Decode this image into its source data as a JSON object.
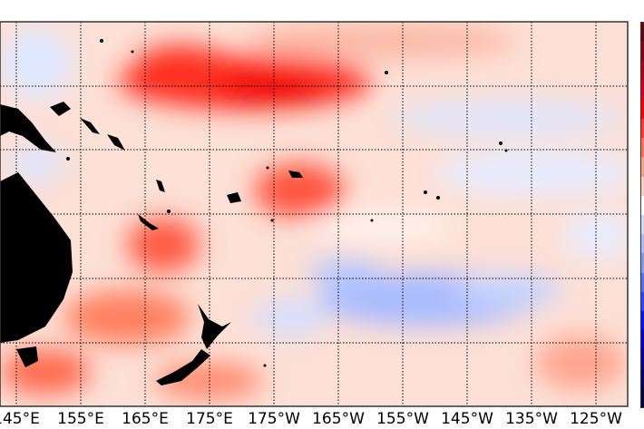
{
  "map": {
    "type": "sea-surface-temperature-anomaly",
    "longitude_labels": [
      "145°E",
      "155°E",
      "165°E",
      "175°E",
      "175°W",
      "165°W",
      "155°W",
      "145°W",
      "135°W",
      "125°W"
    ],
    "colorbar_colors": [
      "#67000d",
      "#8b0010",
      "#b00015",
      "#d7001c",
      "#ff0000",
      "#ff3a2a",
      "#ff7050",
      "#ffa080",
      "#ffd0c0",
      "#ffffff",
      "#d0dcff",
      "#a8bdff",
      "#7f9aff",
      "#5470ff",
      "#2a44ff",
      "#0010ff",
      "#0000d0",
      "#0000a0",
      "#000070",
      "#000045"
    ],
    "land_color": "#000000",
    "warm_color": "#ff0000",
    "cool_color": "#4a6cff"
  }
}
